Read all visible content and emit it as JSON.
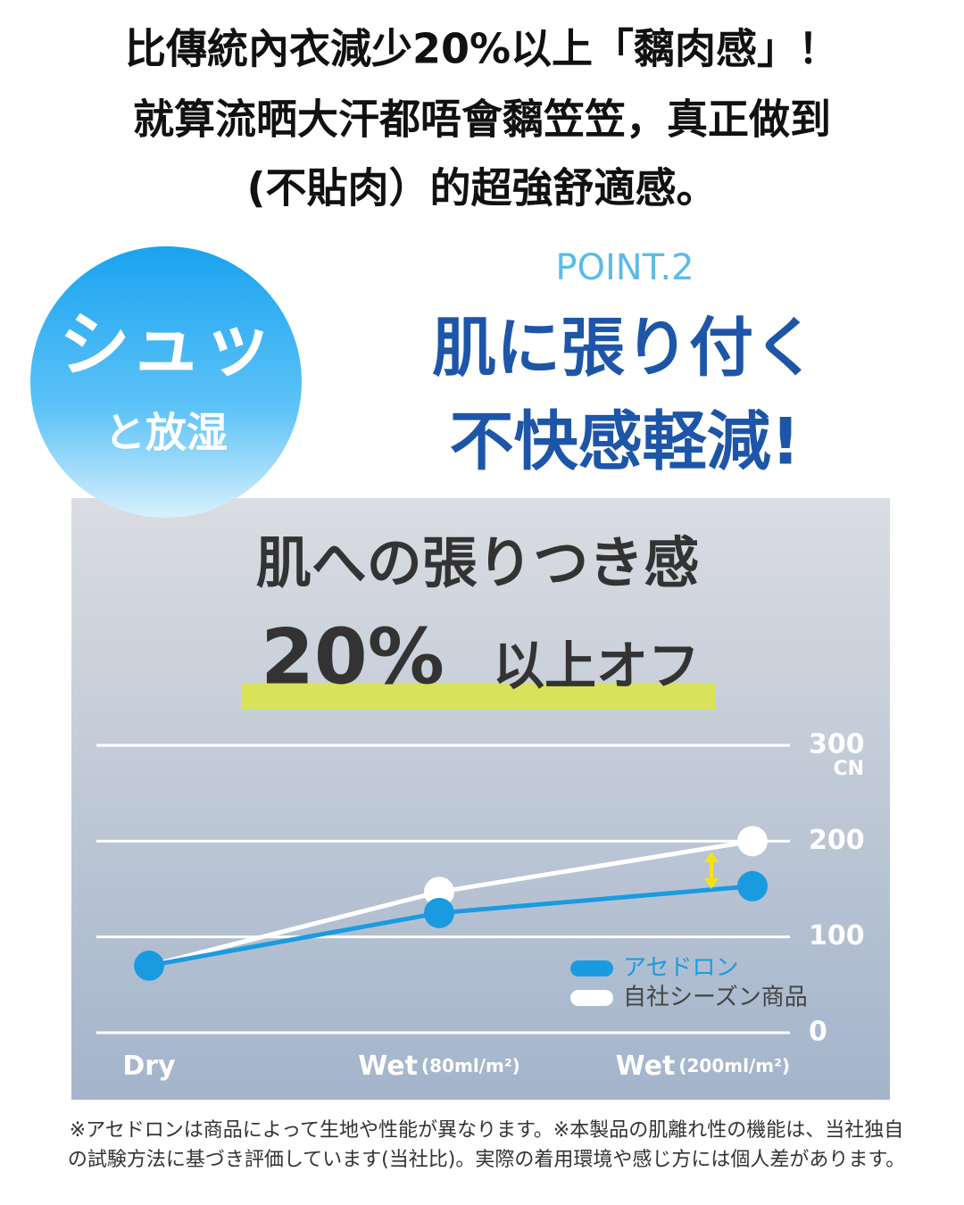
{
  "headline": [
    "比傳統內衣減少20%以上「黐肉感」！",
    "就算流晒大汗都唔會黐笠笠，真正做到",
    "(不貼肉）的超強舒適感。"
  ],
  "badge": {
    "main": "シュッ",
    "sub": "と放湿"
  },
  "point": {
    "label": "POINT.2",
    "title": [
      "肌に張り付く",
      "不快感軽減!"
    ]
  },
  "chart_data": {
    "type": "line",
    "title": "肌への張りつき感",
    "highlight": {
      "number": "20%",
      "text": "以上オフ"
    },
    "categories": [
      "Dry",
      "Wet",
      "Wet"
    ],
    "category_notes": [
      null,
      "(80ml/m²)",
      "(200ml/m²)"
    ],
    "series": [
      {
        "name": "アセドロン",
        "color": "#1a9be0",
        "values": [
          70,
          125,
          153
        ]
      },
      {
        "name": "自社シーズン商品",
        "color": "#ffffff",
        "values": [
          70,
          147,
          200
        ]
      }
    ],
    "ylim": [
      0,
      300
    ],
    "yticks": [
      0,
      100,
      200,
      300
    ],
    "y_unit": "CN",
    "grid": true
  },
  "footnote": [
    "※アセドロンは商品によって生地や性能が異なります。※本製品の肌離れ性の機能は、当社独自",
    "の試験方法に基づき評価しています(当社比)。実際の着用環境や感じ方には個人差があります。"
  ]
}
